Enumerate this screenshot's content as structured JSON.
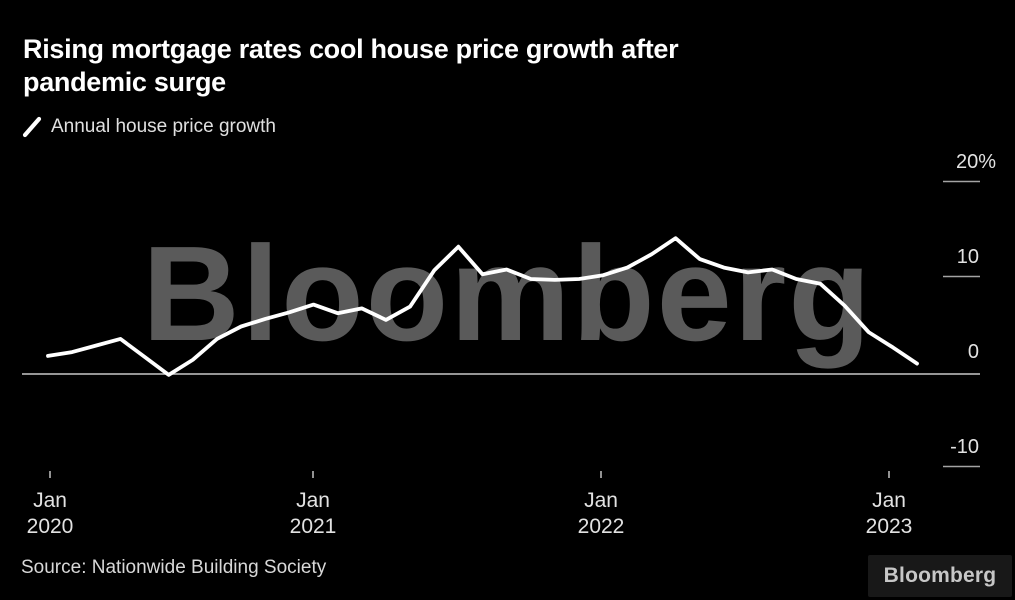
{
  "title": {
    "line1": "Rising mortgage rates cool house price growth after",
    "line2": "pandemic surge"
  },
  "legend": {
    "label": "Annual house price growth"
  },
  "source": "Source: Nationwide Building Society",
  "brand": "Bloomberg",
  "watermark": "Bloomberg",
  "colors": {
    "background": "#000000",
    "line": "#ffffff",
    "watermark": "#5a5a5a",
    "axis_text": "#e2e2e2",
    "zero_line": "#c8c8c8",
    "tick": "#a3a3a3",
    "title_text": "#ffffff",
    "source_text": "#d8d8d8",
    "brand_text": "#c7c7c7",
    "brand_bg": "#181818"
  },
  "chart_data": {
    "type": "line",
    "title": "Rising mortgage rates cool house price growth after pandemic surge",
    "series_name": "Annual house price growth",
    "unit": "%",
    "legend_position": "top-left",
    "grid": "zero-baseline only, right-side tick labels",
    "ylim": [
      -11,
      22
    ],
    "x": [
      "Jan 2020",
      "Feb 2020",
      "Mar 2020",
      "Apr 2020",
      "May 2020",
      "Jun 2020",
      "Jul 2020",
      "Aug 2020",
      "Sep 2020",
      "Oct 2020",
      "Nov 2020",
      "Dec 2020",
      "Jan 2021",
      "Feb 2021",
      "Mar 2021",
      "Apr 2021",
      "May 2021",
      "Jun 2021",
      "Jul 2021",
      "Aug 2021",
      "Sep 2021",
      "Oct 2021",
      "Nov 2021",
      "Dec 2021",
      "Jan 2022",
      "Feb 2022",
      "Mar 2022",
      "Apr 2022",
      "May 2022",
      "Jun 2022",
      "Jul 2022",
      "Aug 2022",
      "Sep 2022",
      "Oct 2022",
      "Nov 2022",
      "Dec 2022",
      "Jan 2023"
    ],
    "values": [
      1.9,
      2.3,
      3.0,
      3.7,
      1.8,
      -0.1,
      1.5,
      3.7,
      5.0,
      5.8,
      6.5,
      7.3,
      6.4,
      6.9,
      5.7,
      7.1,
      10.9,
      13.4,
      10.5,
      11.0,
      10.0,
      9.9,
      10.0,
      10.4,
      11.2,
      12.6,
      14.3,
      12.1,
      11.2,
      10.7,
      11.0,
      10.0,
      9.5,
      7.2,
      4.4,
      2.8,
      1.1
    ],
    "y_ticks": [
      {
        "label": "20%",
        "value": 20
      },
      {
        "label": "10",
        "value": 10
      },
      {
        "label": "0",
        "value": 0
      },
      {
        "label": "-10",
        "value": -10
      }
    ],
    "x_ticks": [
      {
        "line1": "Jan",
        "line2": "2020",
        "month_index": 0
      },
      {
        "line1": "Jan",
        "line2": "2021",
        "month_index": 12
      },
      {
        "line1": "Jan",
        "line2": "2022",
        "month_index": 24
      },
      {
        "line1": "Jan",
        "line2": "2023",
        "month_index": 36
      }
    ]
  }
}
